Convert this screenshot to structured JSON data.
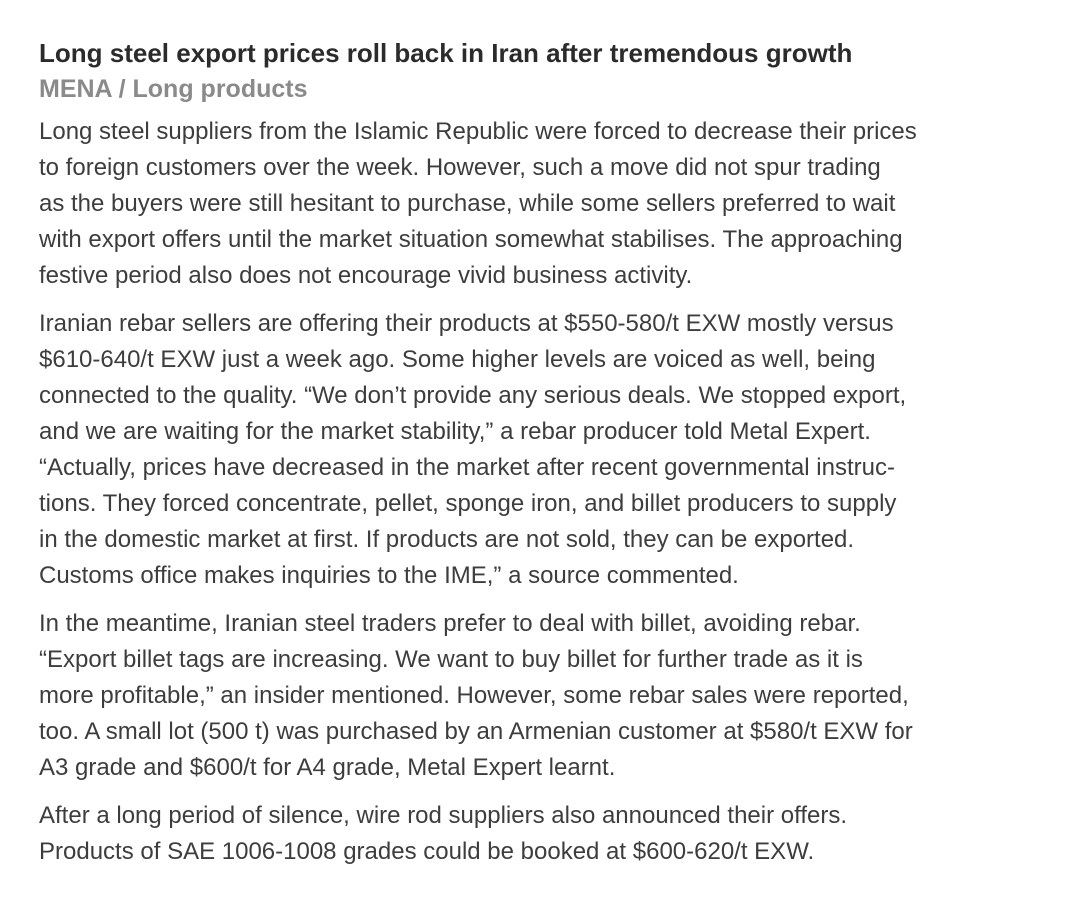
{
  "article": {
    "title": "Long steel export prices roll back in Iran after tremendous growth",
    "section": "MENA / Long products",
    "paragraphs": [
      {
        "lines": [
          "Long steel suppliers from the Islamic Republic were forced to decrease their prices",
          "to foreign customers over the week. However, such a move did not spur trading",
          "as the buyers were still hesitant to purchase, while some sellers preferred to wait",
          "with export offers until the market situation somewhat stabilises. The approaching",
          "festive period also does not encourage vivid business activity."
        ]
      },
      {
        "lines": [
          "Iranian rebar sellers are offering their products at $550-580/t EXW mostly versus",
          "$610-640/t EXW just a week ago. Some higher levels are voiced as well, being",
          "connected to the quality. “We don’t provide any serious deals. We stopped export,",
          "and we are waiting for the market stability,” a rebar producer told Metal Expert.",
          "“Actually, prices have decreased in the market after recent governmental instruc-",
          "tions. They forced concentrate, pellet, sponge iron, and billet producers to supply",
          "in the domestic market at first. If products are not sold, they can be exported.",
          "Customs office makes inquiries to the IME,” a source commented."
        ]
      },
      {
        "lines": [
          "In the meantime, Iranian steel traders prefer to deal with billet, avoiding rebar.",
          "“Export billet tags are increasing. We want to buy billet for further trade as it is",
          "more profitable,” an insider mentioned. However, some rebar sales were reported,",
          "too. A small lot (500 t) was purchased by an Armenian customer at $580/t EXW for",
          "A3 grade and $600/t for A4 grade, Metal Expert learnt."
        ]
      },
      {
        "lines": [
          "After a long period of silence, wire rod suppliers also announced their offers.",
          "Products of SAE 1006-1008 grades could be booked at $600-620/t EXW."
        ]
      }
    ]
  }
}
